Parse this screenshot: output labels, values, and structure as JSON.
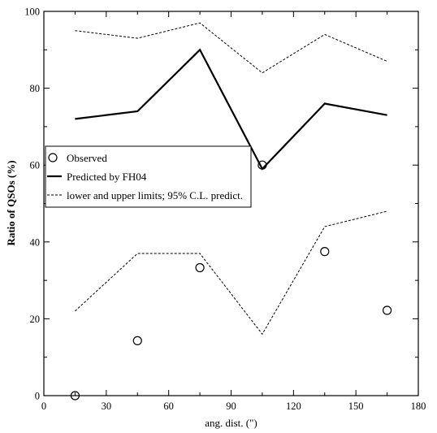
{
  "chart_data": {
    "type": "line",
    "xlabel": "ang. dist. (\")",
    "ylabel": "Ratio of QSOs (%)",
    "xlim": [
      0,
      180
    ],
    "ylim": [
      0,
      100
    ],
    "xticks": [
      0,
      30,
      60,
      90,
      120,
      150,
      180
    ],
    "yticks": [
      0,
      20,
      40,
      60,
      80,
      100
    ],
    "grid": false,
    "legend_position": "center-left",
    "legend": [
      {
        "label": "Observed",
        "style": "circle-marker"
      },
      {
        "label": "Predicted by FH04",
        "style": "solid-line"
      },
      {
        "label": "lower and upper limits; 95% C.L. predict.",
        "style": "dashed-line"
      }
    ],
    "series": [
      {
        "name": "Observed",
        "kind": "scatter",
        "x": [
          15,
          45,
          75,
          105,
          135,
          165
        ],
        "y": [
          0,
          14.3,
          33.3,
          60,
          37.5,
          22.2
        ]
      },
      {
        "name": "Predicted by FH04",
        "kind": "line",
        "style": "solid",
        "x": [
          15,
          45,
          75,
          105,
          135,
          165
        ],
        "y": [
          72,
          74,
          90,
          59,
          76,
          73
        ]
      },
      {
        "name": "lower and upper limits; 95% C.L. predict.",
        "kind": "line",
        "style": "dashed",
        "x": [
          15,
          45,
          75,
          105,
          135,
          165
        ],
        "y": [
          95,
          93,
          97,
          84,
          94,
          87
        ]
      },
      {
        "name": "lower and upper limits; 95% C.L. predict.",
        "kind": "line",
        "style": "dashed",
        "x": [
          15,
          45,
          75,
          105,
          135,
          165
        ],
        "y": [
          22,
          37,
          37,
          16,
          44,
          48
        ]
      }
    ],
    "colors": {
      "ink": "#000000",
      "background": "#ffffff"
    }
  }
}
